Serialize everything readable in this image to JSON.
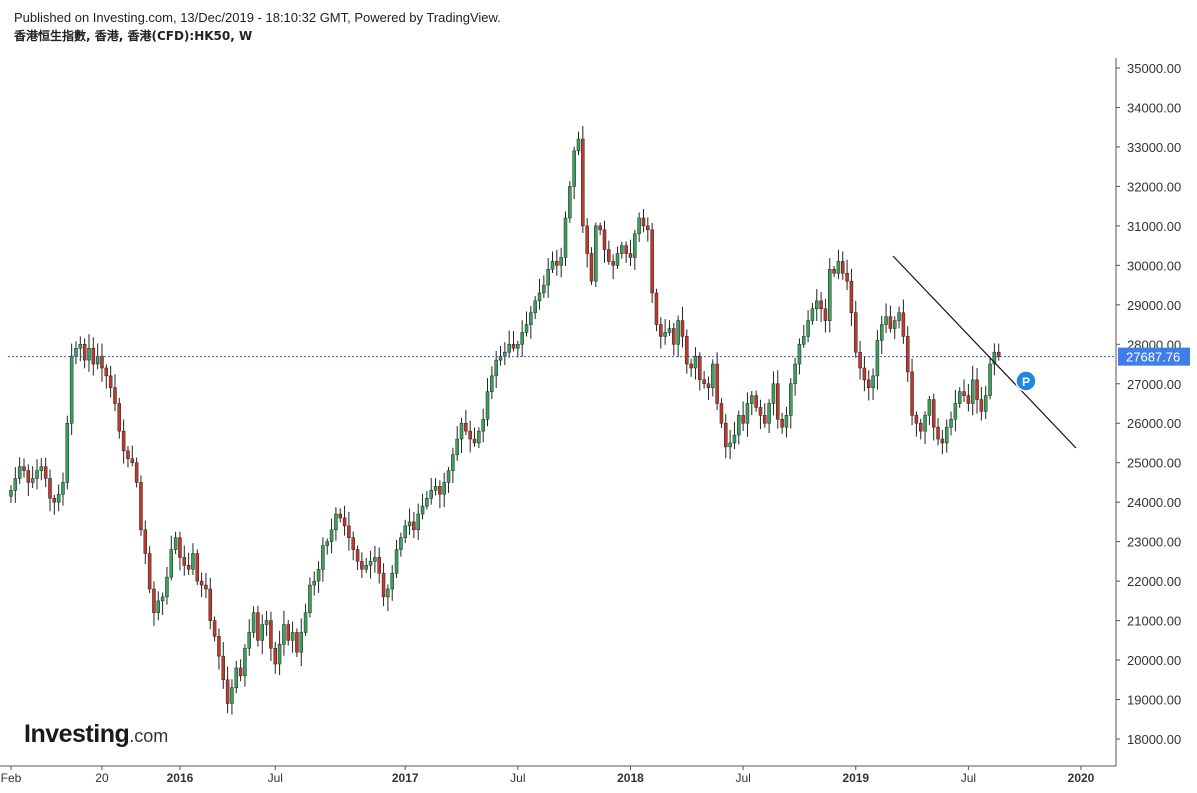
{
  "header": {
    "published": "Published on Investing.com, 13/Dec/2019 - 18:10:32 GMT, Powered by TradingView.",
    "title": "香港恒生指數, 香港, 香港(CFD):HK50, W"
  },
  "brand": {
    "name": "Investing",
    "suffix": ".com"
  },
  "colors": {
    "up": "#3aa35b",
    "down": "#c0392b",
    "current_line": "#3f51d8",
    "price_tag": "#3f7ee8",
    "marker": "#1e88e5"
  },
  "price_tag": "27687.76",
  "marker_label": "P",
  "chart_data": {
    "type": "candlestick",
    "ylim": [
      17500,
      35400
    ],
    "y_ticks": [
      18000,
      19000,
      20000,
      21000,
      22000,
      23000,
      24000,
      25000,
      26000,
      27000,
      28000,
      29000,
      30000,
      31000,
      32000,
      33000,
      34000,
      35000
    ],
    "y_tick_labels": [
      "18000.00",
      "19000.00",
      "20000.00",
      "21000.00",
      "22000.00",
      "23000.00",
      "24000.00",
      "25000.00",
      "26000.00",
      "27000.00",
      "28000.00",
      "29000.00",
      "30000.00",
      "31000.00",
      "32000.00",
      "33000.00",
      "34000.00",
      "35000.00"
    ],
    "x_tick_labels": [
      {
        "label": "Feb",
        "week": 0
      },
      {
        "label": "20",
        "week": 21
      },
      {
        "label": "2016",
        "week": 39
      },
      {
        "label": "Jul",
        "week": 61
      },
      {
        "label": "2017",
        "week": 91
      },
      {
        "label": "Jul",
        "week": 117
      },
      {
        "label": "2018",
        "week": 143
      },
      {
        "label": "Jul",
        "week": 169
      },
      {
        "label": "2019",
        "week": 195
      },
      {
        "label": "Jul",
        "week": 221
      },
      {
        "label": "2020",
        "week": 247
      }
    ],
    "week_count": 257,
    "closes": [
      24300,
      24600,
      24900,
      24800,
      24500,
      24600,
      24800,
      24900,
      24600,
      24100,
      24000,
      24200,
      24500,
      26000,
      27700,
      27900,
      28000,
      27600,
      27900,
      27500,
      27700,
      27400,
      27200,
      26900,
      26500,
      25800,
      25300,
      25100,
      25000,
      24500,
      23300,
      22700,
      21800,
      21200,
      21500,
      21600,
      22100,
      22800,
      23100,
      22600,
      22400,
      22300,
      22700,
      22000,
      21900,
      21800,
      21000,
      20600,
      20100,
      19500,
      18900,
      19300,
      19800,
      19600,
      20300,
      20700,
      21200,
      20500,
      20900,
      21000,
      20300,
      19900,
      20400,
      20900,
      20500,
      20700,
      20200,
      20700,
      21200,
      21900,
      22000,
      22300,
      22900,
      23000,
      23300,
      23700,
      23600,
      23400,
      23100,
      22800,
      22500,
      22300,
      22400,
      22500,
      22600,
      22200,
      21600,
      21800,
      22200,
      22800,
      23100,
      23400,
      23500,
      23300,
      23700,
      23900,
      24100,
      24300,
      24400,
      24200,
      24500,
      24800,
      25200,
      25600,
      26000,
      25800,
      25600,
      25500,
      25800,
      26100,
      26800,
      27200,
      27600,
      27700,
      27800,
      28000,
      27900,
      28000,
      28300,
      28500,
      28800,
      29100,
      29300,
      29500,
      29900,
      30100,
      30000,
      30200,
      31200,
      32000,
      32900,
      33200,
      31000,
      30300,
      29600,
      31000,
      30900,
      30400,
      30100,
      30000,
      30300,
      30500,
      30300,
      30200,
      30800,
      31200,
      31000,
      30900,
      29300,
      28500,
      28200,
      28300,
      28400,
      28000,
      28600,
      28200,
      27500,
      27400,
      27700,
      27100,
      27000,
      26900,
      27500,
      26500,
      26000,
      25400,
      25500,
      25700,
      26200,
      26000,
      26500,
      26700,
      26400,
      26200,
      26000,
      26500,
      27000,
      26100,
      25900,
      26200,
      27000,
      27500,
      28000,
      28200,
      28600,
      28900,
      29100,
      28900,
      28600,
      29900,
      29800,
      30100,
      29800,
      29600,
      28800,
      27800,
      27400,
      27100,
      26900,
      27200,
      28100,
      28500,
      28700,
      28400,
      28600,
      28800,
      28200,
      27300,
      26200,
      26000,
      25800,
      26200,
      26600,
      25900,
      25600,
      25500,
      25900,
      26100,
      26500,
      26800,
      26700,
      26500,
      27100,
      26600,
      26300,
      26700,
      27500,
      27800,
      27687
    ]
  }
}
